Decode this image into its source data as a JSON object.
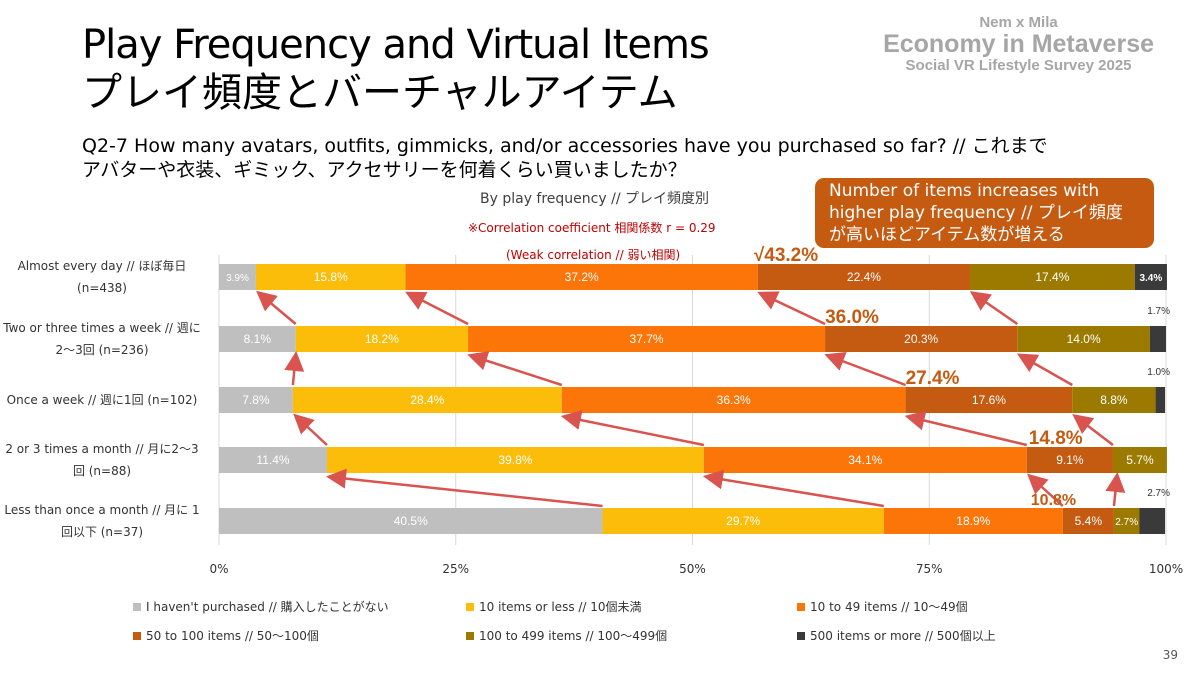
{
  "title_en": "Play Frequency and Virtual Items",
  "title_ja": "プレイ頻度とバーチャルアイテム",
  "brand": {
    "line1": "Nem x Mila",
    "line2": "Economy in Metaverse",
    "line3": "Social VR Lifestyle Survey 2025"
  },
  "question_line1": "Q2-7 How many avatars, outfits, gimmicks, and/or accessories have you purchased so far? // これまで",
  "question_line2": "アバターや衣装、ギミック、アクセサリーを何着くらい買いましたか？",
  "callout_line1": "Number of items increases with",
  "callout_line2": "higher play frequency // プレイ頻度",
  "callout_line3": "が高いほどアイテム数が増える",
  "page_number": "39",
  "chart_data": {
    "type": "bar",
    "orientation": "horizontal",
    "stacked": true,
    "subtitle": "By play frequency // プレイ頻度別",
    "annotation_line1": "※Correlation coefficient 相関係数 r = 0.29",
    "annotation_line2": "(Weak correlation // 弱い相関)",
    "categories": [
      [
        "Almost every day // ほぼ毎日",
        "(n=438)"
      ],
      [
        "Two or three times a week // 週に",
        "2〜3回 (n=236)"
      ],
      [
        "Once a week // 週に1回 (n=102)"
      ],
      [
        "2 or 3 times a month // 月に2〜3",
        "回 (n=88)"
      ],
      [
        "Less than once a month // 月に 1",
        "回以下 (n=37)"
      ]
    ],
    "series": [
      {
        "name": "I haven't purchased // 購入したことがない",
        "color": "#bfbfbf",
        "values": [
          3.9,
          8.1,
          7.8,
          11.4,
          40.5
        ]
      },
      {
        "name": "10 items or less // 10個未満",
        "color": "#fbbd0a",
        "values": [
          15.8,
          18.2,
          28.4,
          39.8,
          29.7
        ]
      },
      {
        "name": "10 to 49 items // 10〜49個",
        "color": "#fb7508",
        "values": [
          37.2,
          37.7,
          36.3,
          34.1,
          18.9
        ]
      },
      {
        "name": "50 to 100 items // 50〜100個",
        "color": "#c55a11",
        "values": [
          22.4,
          20.3,
          17.6,
          9.1,
          5.4
        ]
      },
      {
        "name": "100 to 499 items // 100〜499個",
        "color": "#9c7a00",
        "values": [
          17.4,
          14.0,
          8.8,
          5.7,
          2.7
        ]
      },
      {
        "name": "500 items or more // 500個以上",
        "color": "#3a3a3a",
        "values": [
          3.4,
          1.7,
          1.0,
          0,
          2.7
        ]
      }
    ],
    "highlight_labels": [
      "√43.2%",
      "36.0%",
      "27.4%",
      "14.8%",
      "10.8%"
    ],
    "highlight_color": "#c55a11",
    "arrow_color": "#d9534f",
    "xticks": [
      "0%",
      "25%",
      "50%",
      "75%",
      "100%"
    ],
    "xlim": [
      0,
      100
    ],
    "grid": true,
    "legend_placement": "bottom"
  }
}
